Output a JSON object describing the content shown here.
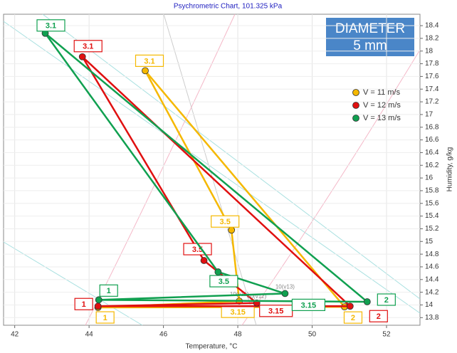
{
  "chart_data": {
    "type": "line",
    "title": "Psychrometric Chart, 101.325 kPa",
    "xlabel": "Temperature, °C",
    "ylabel": "Humidity, g/kg",
    "annotation": [
      "DIAMETER",
      "5 mm"
    ],
    "xlim": [
      41.7,
      52.9
    ],
    "ylim": [
      13.68,
      18.58
    ],
    "xticks": [
      42,
      44,
      46,
      48,
      50,
      52
    ],
    "yticks": [
      13.8,
      14,
      14.2,
      14.4,
      14.6,
      14.8,
      15,
      15.2,
      15.4,
      15.6,
      15.8,
      16,
      16.2,
      16.4,
      16.6,
      16.8,
      17,
      17.2,
      17.4,
      17.6,
      17.8,
      18,
      18.2,
      18.4
    ],
    "grid": true,
    "legend": "upper right",
    "series": [
      {
        "name": "V = 11 m/s",
        "color": "#f5b800",
        "labels": [
          "1",
          "2",
          "3.1",
          "3.5",
          "3.15"
        ],
        "x": [
          44.24,
          50.87,
          45.51,
          47.83,
          48.04
        ],
        "values": [
          13.96,
          13.97,
          17.69,
          15.18,
          14.06
        ],
        "point_note": "10(v11)"
      },
      {
        "name": "V = 12 m/s",
        "color": "#e01010",
        "labels": [
          "1",
          "2",
          "3.1",
          "3.5",
          "3.15"
        ],
        "x": [
          44.24,
          51.02,
          43.82,
          47.09,
          48.51
        ],
        "values": [
          13.98,
          13.98,
          17.91,
          14.7,
          14.03
        ],
        "point_note": "10(v12)"
      },
      {
        "name": "V = 13 m/s",
        "color": "#10a050",
        "labels": [
          "1",
          "2",
          "3.1",
          "3.5",
          "3.15"
        ],
        "x": [
          44.26,
          51.48,
          42.82,
          47.47,
          49.27
        ],
        "values": [
          14.08,
          14.05,
          18.28,
          14.52,
          14.18
        ],
        "point_note": "10(v13)"
      }
    ]
  }
}
